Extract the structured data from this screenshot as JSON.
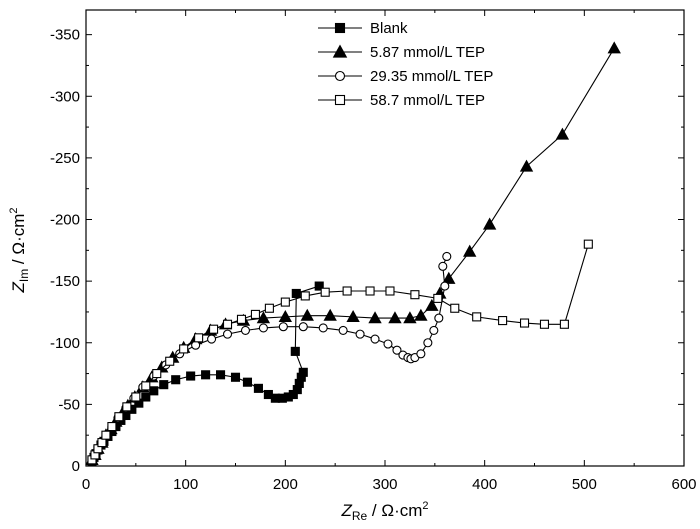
{
  "chart_data": {
    "type": "scatter",
    "title": "",
    "xlabel": {
      "main": "Z",
      "sub": "Re",
      "unit": " / Ω·cm",
      "sup": "2"
    },
    "ylabel": {
      "main": "Z",
      "sub": "Im",
      "unit": " / Ω·cm",
      "sup": "2"
    },
    "xlim": [
      0,
      600
    ],
    "ylim": [
      0,
      -370
    ],
    "xticks": [
      0,
      100,
      200,
      300,
      400,
      500,
      600
    ],
    "xtick_labels": [
      "0",
      "100",
      "200",
      "300",
      "400",
      "500",
      "600"
    ],
    "yticks": [
      0,
      -50,
      -100,
      -150,
      -200,
      -250,
      -300,
      -350
    ],
    "ytick_labels": [
      "0",
      "-50",
      "-100",
      "-150",
      "-200",
      "-250",
      "-300",
      "-350"
    ],
    "grid": false,
    "legend_position": "top-center",
    "series": [
      {
        "name": "Blank",
        "marker": "square-filled",
        "points": [
          [
            6,
            -4
          ],
          [
            8,
            -7
          ],
          [
            10,
            -10
          ],
          [
            12,
            -13
          ],
          [
            15,
            -17
          ],
          [
            18,
            -20
          ],
          [
            22,
            -24
          ],
          [
            26,
            -28
          ],
          [
            30,
            -32
          ],
          [
            35,
            -37
          ],
          [
            40,
            -41
          ],
          [
            46,
            -46
          ],
          [
            53,
            -51
          ],
          [
            60,
            -56
          ],
          [
            68,
            -61
          ],
          [
            78,
            -66
          ],
          [
            90,
            -70
          ],
          [
            105,
            -73
          ],
          [
            120,
            -74
          ],
          [
            135,
            -74
          ],
          [
            150,
            -72
          ],
          [
            162,
            -68
          ],
          [
            173,
            -63
          ],
          [
            183,
            -58
          ],
          [
            190,
            -55
          ],
          [
            197,
            -55
          ],
          [
            203,
            -56
          ],
          [
            208,
            -58
          ],
          [
            212,
            -62
          ],
          [
            214,
            -67
          ],
          [
            216,
            -72
          ],
          [
            218,
            -76
          ],
          [
            210,
            -93
          ],
          [
            211,
            -140
          ],
          [
            234,
            -146
          ]
        ]
      },
      {
        "name": "5.87 mmol/L TEP",
        "marker": "triangle-filled",
        "points": [
          [
            6,
            -5
          ],
          [
            9,
            -9
          ],
          [
            12,
            -14
          ],
          [
            16,
            -19
          ],
          [
            20,
            -25
          ],
          [
            25,
            -30
          ],
          [
            30,
            -36
          ],
          [
            36,
            -42
          ],
          [
            42,
            -49
          ],
          [
            49,
            -56
          ],
          [
            57,
            -64
          ],
          [
            66,
            -72
          ],
          [
            76,
            -80
          ],
          [
            87,
            -88
          ],
          [
            98,
            -96
          ],
          [
            110,
            -103
          ],
          [
            125,
            -110
          ],
          [
            140,
            -115
          ],
          [
            158,
            -118
          ],
          [
            178,
            -120
          ],
          [
            200,
            -121
          ],
          [
            222,
            -122
          ],
          [
            245,
            -122
          ],
          [
            268,
            -121
          ],
          [
            290,
            -120
          ],
          [
            310,
            -120
          ],
          [
            325,
            -120
          ],
          [
            336,
            -122
          ],
          [
            347,
            -130
          ],
          [
            355,
            -140
          ],
          [
            364,
            -152
          ],
          [
            385,
            -174
          ],
          [
            405,
            -196
          ],
          [
            442,
            -243
          ],
          [
            478,
            -269
          ],
          [
            530,
            -339
          ]
        ]
      },
      {
        "name": "29.35 mmol/L TEP",
        "marker": "circle-open",
        "points": [
          [
            6,
            -5
          ],
          [
            9,
            -9
          ],
          [
            12,
            -14
          ],
          [
            16,
            -19
          ],
          [
            20,
            -25
          ],
          [
            26,
            -32
          ],
          [
            32,
            -39
          ],
          [
            40,
            -47
          ],
          [
            48,
            -55
          ],
          [
            57,
            -64
          ],
          [
            68,
            -73
          ],
          [
            80,
            -82
          ],
          [
            94,
            -91
          ],
          [
            110,
            -98
          ],
          [
            126,
            -103
          ],
          [
            142,
            -107
          ],
          [
            160,
            -110
          ],
          [
            178,
            -112
          ],
          [
            198,
            -113
          ],
          [
            218,
            -113
          ],
          [
            238,
            -112
          ],
          [
            258,
            -110
          ],
          [
            275,
            -107
          ],
          [
            290,
            -103
          ],
          [
            303,
            -99
          ],
          [
            312,
            -94
          ],
          [
            318,
            -90
          ],
          [
            323,
            -88
          ],
          [
            326,
            -87
          ],
          [
            330,
            -88
          ],
          [
            336,
            -91
          ],
          [
            343,
            -100
          ],
          [
            349,
            -110
          ],
          [
            354,
            -120
          ],
          [
            360,
            -146
          ],
          [
            358,
            -162
          ],
          [
            362,
            -170
          ]
        ]
      },
      {
        "name": "58.7 mmol/L TEP",
        "marker": "square-open",
        "points": [
          [
            6,
            -5
          ],
          [
            9,
            -9
          ],
          [
            12,
            -14
          ],
          [
            16,
            -19
          ],
          [
            20,
            -25
          ],
          [
            26,
            -32
          ],
          [
            33,
            -40
          ],
          [
            41,
            -48
          ],
          [
            50,
            -56
          ],
          [
            60,
            -65
          ],
          [
            71,
            -75
          ],
          [
            84,
            -85
          ],
          [
            98,
            -95
          ],
          [
            113,
            -104
          ],
          [
            128,
            -111
          ],
          [
            142,
            -115
          ],
          [
            156,
            -119
          ],
          [
            170,
            -123
          ],
          [
            184,
            -128
          ],
          [
            200,
            -133
          ],
          [
            220,
            -138
          ],
          [
            240,
            -141
          ],
          [
            262,
            -142
          ],
          [
            285,
            -142
          ],
          [
            305,
            -142
          ],
          [
            330,
            -139
          ],
          [
            353,
            -136
          ],
          [
            370,
            -128
          ],
          [
            392,
            -121
          ],
          [
            418,
            -118
          ],
          [
            440,
            -116
          ],
          [
            460,
            -115
          ],
          [
            480,
            -115
          ],
          [
            504,
            -180
          ]
        ]
      }
    ]
  }
}
